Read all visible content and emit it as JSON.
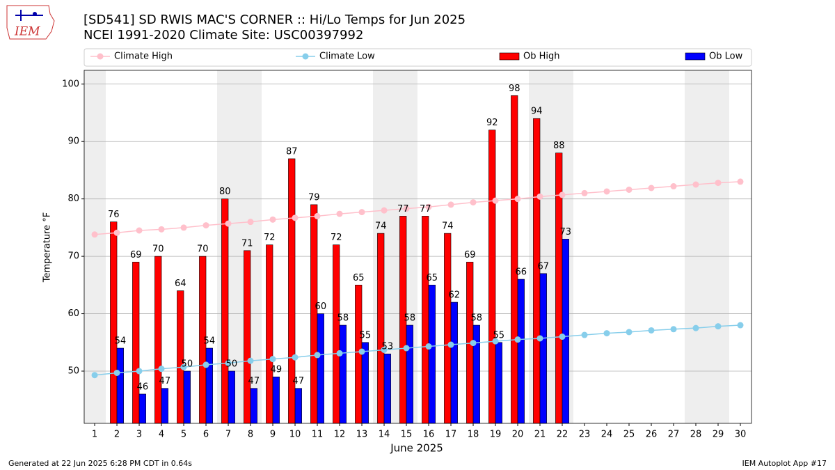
{
  "chart_data": {
    "type": "bar",
    "title": "[SD541] SD RWIS MAC'S CORNER :: Hi/Lo Temps for Jun 2025",
    "subtitle": "NCEI 1991-2020 Climate Site: USC00397992",
    "xlabel": "June 2025",
    "ylabel": "Temperature °F",
    "x": [
      1,
      2,
      3,
      4,
      5,
      6,
      7,
      8,
      9,
      10,
      11,
      12,
      13,
      14,
      15,
      16,
      17,
      18,
      19,
      20,
      21,
      22,
      23,
      24,
      25,
      26,
      27,
      28,
      29,
      30
    ],
    "xlim": [
      0.53,
      30.5
    ],
    "xticks": [
      1,
      2,
      3,
      4,
      5,
      6,
      7,
      8,
      9,
      10,
      11,
      12,
      13,
      14,
      15,
      16,
      17,
      18,
      19,
      20,
      21,
      22,
      23,
      24,
      25,
      26,
      27,
      28,
      29,
      30
    ],
    "ylim": [
      40.9,
      102.4
    ],
    "yticks": [
      50,
      60,
      70,
      80,
      90,
      100
    ],
    "grid": "y",
    "legend": "top",
    "shaded_x": [
      1,
      7,
      8,
      14,
      15,
      21,
      22,
      28,
      29
    ],
    "shade_color": "#eeeeee",
    "series": [
      {
        "name": "Climate High",
        "type": "line",
        "color": "pink",
        "values": [
          73.8,
          74.1,
          74.5,
          74.7,
          75.0,
          75.4,
          75.7,
          76.0,
          76.4,
          76.7,
          77.0,
          77.4,
          77.7,
          78.0,
          78.3,
          78.6,
          79.0,
          79.4,
          79.7,
          80.0,
          80.4,
          80.7,
          81.0,
          81.3,
          81.6,
          81.9,
          82.2,
          82.5,
          82.8,
          83.0
        ]
      },
      {
        "name": "Climate Low",
        "type": "line",
        "color": "skyblue",
        "values": [
          49.3,
          49.7,
          50.0,
          50.4,
          50.7,
          51.1,
          51.4,
          51.8,
          52.1,
          52.4,
          52.8,
          53.1,
          53.4,
          53.7,
          54.0,
          54.3,
          54.6,
          54.9,
          55.2,
          55.5,
          55.7,
          56.0,
          56.3,
          56.6,
          56.8,
          57.1,
          57.3,
          57.5,
          57.8,
          58.0
        ]
      },
      {
        "name": "Ob High",
        "type": "bar",
        "color": "red",
        "values": [
          null,
          76,
          69,
          70,
          64,
          70,
          80,
          71,
          72,
          87,
          79,
          72,
          65,
          74,
          77,
          77,
          74,
          69,
          92,
          98,
          94,
          88,
          null,
          null,
          null,
          null,
          null,
          null,
          null,
          null
        ]
      },
      {
        "name": "Ob Low",
        "type": "bar",
        "color": "blue",
        "values": [
          null,
          54,
          46,
          47,
          50,
          54,
          50,
          47,
          49,
          47,
          60,
          58,
          55,
          53,
          58,
          65,
          62,
          58,
          55,
          66,
          67,
          73,
          null,
          null,
          null,
          null,
          null,
          null,
          null,
          null
        ]
      }
    ]
  },
  "logo_text": "IEM",
  "footer_left": "Generated at 22 Jun 2025 6:28 PM CDT in 0.64s",
  "footer_right": "IEM Autoplot App #17"
}
